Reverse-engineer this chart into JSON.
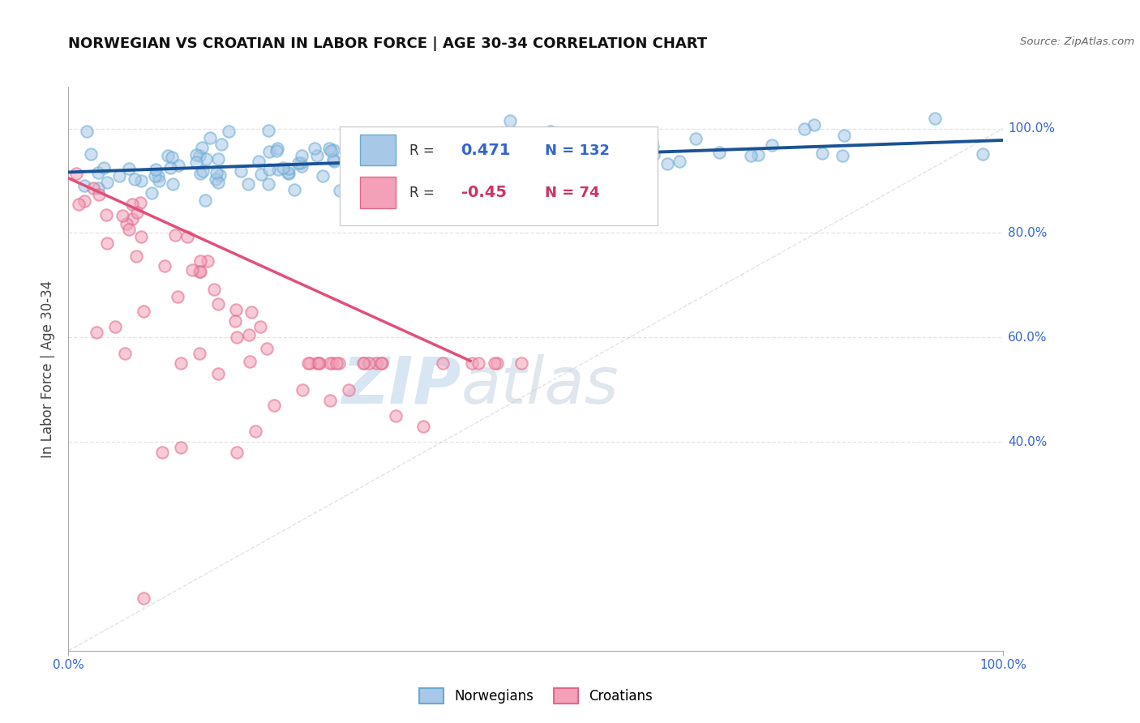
{
  "title": "NORWEGIAN VS CROATIAN IN LABOR FORCE | AGE 30-34 CORRELATION CHART",
  "source_text": "Source: ZipAtlas.com",
  "ylabel": "In Labor Force | Age 30-34",
  "xlim": [
    0.0,
    1.0
  ],
  "ylim": [
    0.0,
    1.08
  ],
  "norwegian_color": "#a8c8e8",
  "croatian_color": "#f4a0b8",
  "norwegian_line_color": "#1a5296",
  "croatian_line_color": "#e0507a",
  "trendline_gray": "#cccccc",
  "R_norwegian": 0.471,
  "N_norwegian": 132,
  "R_croatian": -0.45,
  "N_croatian": 74,
  "legend_norwegian": "Norwegians",
  "legend_croatian": "Croatians",
  "dot_size": 110,
  "dot_alpha": 0.55,
  "dot_linewidth": 1.5,
  "dot_edgecolor_norwegian": "#6aaad0",
  "dot_edgecolor_croatian": "#e06888",
  "tick_color": "#3366cc",
  "ylabel_color": "#444444",
  "title_color": "#111111",
  "source_color": "#666666",
  "watermark_zip_color": "#b8d0e8",
  "watermark_atlas_color": "#b8c8d8",
  "grid_color": "#dddddd",
  "legend_border_color": "#cccccc",
  "legend_bg_color": "#ffffff"
}
